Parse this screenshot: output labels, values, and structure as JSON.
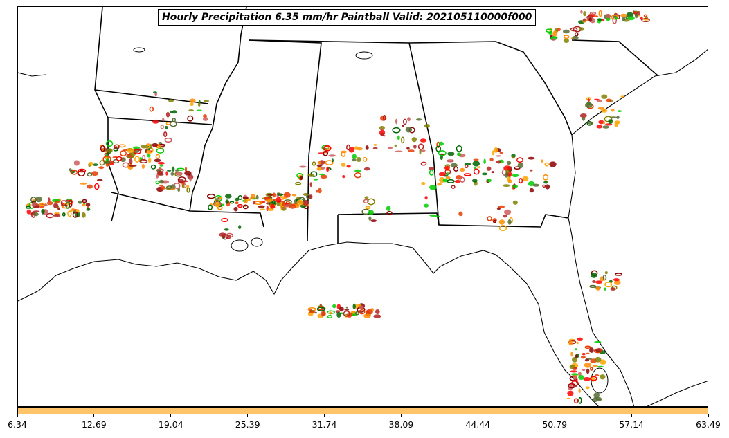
{
  "title": "Hourly Precipitation 6.35 mm/hr Paintball Valid: 202105110000f000",
  "colorbar": {
    "fill_color": "#ffc469",
    "ticks": [
      "6.34",
      "12.69",
      "19.04",
      "25.39",
      "31.74",
      "38.09",
      "44.44",
      "50.79",
      "57.14",
      "63.49"
    ]
  },
  "paintball_colors": [
    "#ff8c00",
    "#ffa500",
    "#e53b00",
    "#ff0000",
    "#8b0000",
    "#b22222",
    "#006400",
    "#00cd00",
    "#808000",
    "#556b2f",
    "#cd5c5c"
  ],
  "region": "Southeastern United States and Gulf of Mexico"
}
